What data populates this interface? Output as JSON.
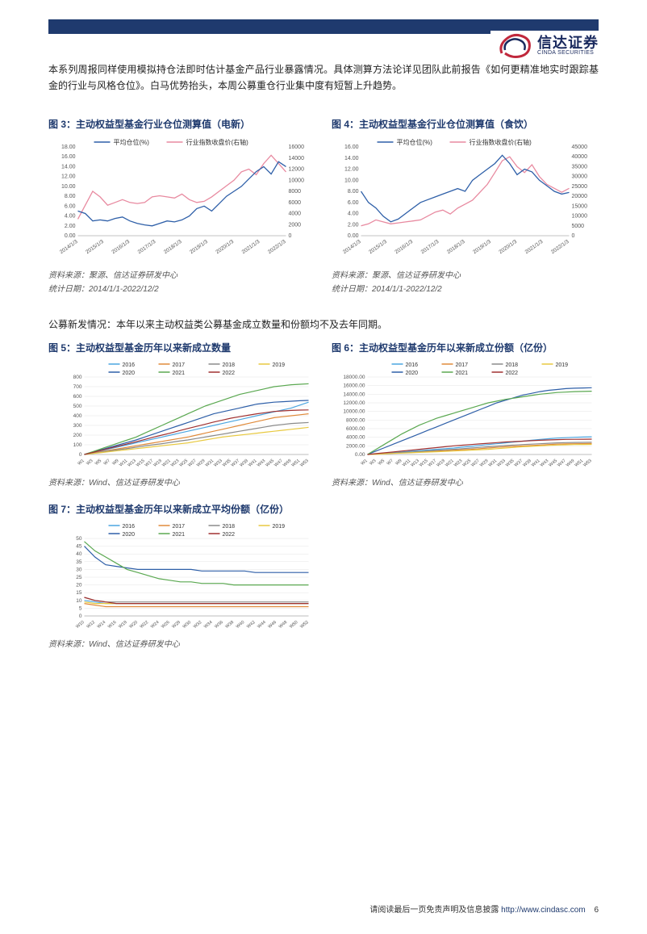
{
  "header": {
    "logo_cn": "信达证券",
    "logo_en": "CINDA SECURITIES"
  },
  "intro": "本系列周报同样使用模拟持仓法即时估计基金产品行业暴露情况。具体测算方法论详见团队此前报告《如何更精准地实时跟踪基金的行业与风格仓位》。白马优势抬头，本周公募重仓行业集中度有短暂上升趋势。",
  "chart3": {
    "title": "图 3：主动权益型基金行业仓位测算值（电新）",
    "legend": {
      "l1": "平均仓位(%)",
      "l2": "行业指数收盘价(右轴)"
    },
    "type": "line",
    "colors": {
      "l1": "#2e5fa8",
      "l2": "#e88aa0"
    },
    "y_left": {
      "min": 0,
      "max": 18,
      "step": 2,
      "ticks": [
        "0.00",
        "2.00",
        "4.00",
        "6.00",
        "8.00",
        "10.00",
        "12.00",
        "14.00",
        "16.00",
        "18.00"
      ]
    },
    "y_right": {
      "min": 0,
      "max": 16000,
      "step": 2000,
      "ticks": [
        "0",
        "2000",
        "4000",
        "6000",
        "8000",
        "10000",
        "12000",
        "14000",
        "16000"
      ]
    },
    "x_ticks": [
      "2014/1/3",
      "2015/1/3",
      "2016/1/3",
      "2017/1/3",
      "2018/1/3",
      "2019/1/3",
      "2020/1/3",
      "2021/1/3",
      "2022/1/3"
    ],
    "series_l1": [
      5.0,
      4.5,
      3.0,
      3.2,
      3.0,
      3.5,
      3.8,
      3.0,
      2.5,
      2.2,
      2.0,
      2.5,
      3.0,
      2.8,
      3.2,
      4.0,
      5.5,
      6.0,
      5.0,
      6.5,
      8.0,
      9.0,
      10.0,
      11.5,
      13.0,
      14.0,
      12.5,
      15.0,
      14.0
    ],
    "series_l2": [
      3000,
      5500,
      8000,
      7000,
      5500,
      6000,
      6500,
      6000,
      5800,
      6000,
      7000,
      7200,
      7000,
      6800,
      7500,
      6500,
      6000,
      6200,
      7000,
      8000,
      9000,
      10000,
      11500,
      12000,
      11000,
      13000,
      14500,
      13000,
      11500
    ],
    "source": "资料来源：聚源、信达证券研发中心",
    "date": "统计日期：2014/1/1-2022/12/2"
  },
  "chart4": {
    "title": "图 4：主动权益型基金行业仓位测算值（食饮）",
    "legend": {
      "l1": "平均仓位(%)",
      "l2": "行业指数收盘价(右轴)"
    },
    "type": "line",
    "colors": {
      "l1": "#2e5fa8",
      "l2": "#e88aa0"
    },
    "y_left": {
      "min": 0,
      "max": 16,
      "step": 2,
      "ticks": [
        "0.00",
        "2.00",
        "4.00",
        "6.00",
        "8.00",
        "10.00",
        "12.00",
        "14.00",
        "16.00"
      ]
    },
    "y_right": {
      "min": 0,
      "max": 45000,
      "step": 5000,
      "ticks": [
        "0",
        "5000",
        "10000",
        "15000",
        "20000",
        "25000",
        "30000",
        "35000",
        "40000",
        "45000"
      ]
    },
    "x_ticks": [
      "2014/1/3",
      "2015/1/3",
      "2016/1/3",
      "2017/1/3",
      "2018/1/3",
      "2019/1/3",
      "2020/1/3",
      "2021/1/3",
      "2022/1/3"
    ],
    "series_l1": [
      8.0,
      6.0,
      5.0,
      3.5,
      2.5,
      3.0,
      4.0,
      5.0,
      6.0,
      6.5,
      7.0,
      7.5,
      8.0,
      8.5,
      8.0,
      10.0,
      11.0,
      12.0,
      13.0,
      14.5,
      13.0,
      11.0,
      12.0,
      11.5,
      10.0,
      9.0,
      8.0,
      7.5,
      7.8
    ],
    "series_l2": [
      5000,
      6000,
      8000,
      7000,
      6000,
      6500,
      7000,
      7500,
      8000,
      10000,
      12000,
      13000,
      11000,
      14000,
      16000,
      18000,
      22000,
      26000,
      32000,
      38000,
      40000,
      35000,
      32000,
      36000,
      30000,
      26000,
      24000,
      22000,
      24000
    ],
    "source": "资料来源：聚源、信达证券研发中心",
    "date": "统计日期：2014/1/1-2022/12/2"
  },
  "section2": "公募新发情况：本年以来主动权益类公募基金成立数量和份额均不及去年同期。",
  "year_colors": {
    "2016": "#4aa5e0",
    "2017": "#e08a3a",
    "2018": "#8a8a8a",
    "2019": "#e8c940",
    "2020": "#2e5fa8",
    "2021": "#5aa850",
    "2022": "#a03030"
  },
  "chart5": {
    "title": "图 5：主动权益型基金历年以来新成立数量",
    "type": "line",
    "y": {
      "min": 0,
      "max": 800,
      "step": 100,
      "ticks": [
        "0",
        "100",
        "200",
        "300",
        "400",
        "500",
        "600",
        "700",
        "800"
      ]
    },
    "x_ticks": [
      "W1",
      "W3",
      "W5",
      "W7",
      "W9",
      "W11",
      "W13",
      "W15",
      "W17",
      "W19",
      "W21",
      "W23",
      "W25",
      "W27",
      "W29",
      "W31",
      "W33",
      "W35",
      "W37",
      "W39",
      "W41",
      "W43",
      "W45",
      "W47",
      "W49",
      "W51",
      "W53"
    ],
    "series": {
      "2016": [
        0,
        20,
        40,
        60,
        80,
        100,
        120,
        140,
        160,
        180,
        200,
        220,
        240,
        260,
        280,
        300,
        320,
        340,
        360,
        380,
        400,
        420,
        440,
        460,
        480,
        510,
        540
      ],
      "2017": [
        0,
        15,
        30,
        45,
        60,
        75,
        90,
        105,
        120,
        135,
        150,
        165,
        180,
        200,
        220,
        240,
        260,
        280,
        300,
        320,
        340,
        360,
        380,
        390,
        400,
        410,
        420
      ],
      "2018": [
        0,
        12,
        25,
        38,
        50,
        62,
        75,
        88,
        100,
        112,
        125,
        138,
        150,
        165,
        180,
        195,
        210,
        225,
        240,
        255,
        270,
        285,
        300,
        310,
        320,
        325,
        330
      ],
      "2019": [
        0,
        10,
        20,
        30,
        40,
        50,
        60,
        70,
        80,
        90,
        100,
        110,
        120,
        135,
        150,
        165,
        180,
        190,
        200,
        210,
        220,
        230,
        240,
        250,
        260,
        270,
        280
      ],
      "2020": [
        0,
        25,
        50,
        75,
        100,
        125,
        150,
        180,
        210,
        240,
        270,
        300,
        330,
        360,
        390,
        420,
        440,
        460,
        480,
        500,
        520,
        530,
        540,
        545,
        550,
        555,
        558
      ],
      "2021": [
        0,
        30,
        60,
        90,
        120,
        150,
        180,
        220,
        260,
        300,
        340,
        380,
        420,
        460,
        500,
        530,
        560,
        590,
        620,
        640,
        660,
        680,
        700,
        710,
        720,
        725,
        730
      ],
      "2022": [
        0,
        22,
        44,
        66,
        88,
        110,
        132,
        155,
        178,
        200,
        222,
        245,
        268,
        290,
        312,
        335,
        355,
        375,
        390,
        405,
        420,
        432,
        444,
        450,
        455,
        458,
        460
      ]
    },
    "source": "资料来源：Wind、信达证券研发中心"
  },
  "chart6": {
    "title": "图 6：主动权益型基金历年以来新成立份额（亿份）",
    "type": "line",
    "y": {
      "min": 0,
      "max": 18000,
      "step": 2000,
      "ticks": [
        "0.00",
        "2000.00",
        "4000.00",
        "6000.00",
        "8000.00",
        "10000.00",
        "12000.00",
        "14000.00",
        "16000.00",
        "18000.00"
      ]
    },
    "x_ticks": [
      "W1",
      "W3",
      "W5",
      "W7",
      "W9",
      "W11",
      "W13",
      "W15",
      "W17",
      "W19",
      "W21",
      "W23",
      "W25",
      "W27",
      "W29",
      "W31",
      "W33",
      "W35",
      "W37",
      "W39",
      "W41",
      "W43",
      "W45",
      "W47",
      "W49",
      "W51",
      "W53"
    ],
    "series": {
      "2016": [
        0,
        150,
        300,
        450,
        600,
        750,
        900,
        1050,
        1200,
        1350,
        1500,
        1700,
        1900,
        2100,
        2300,
        2500,
        2700,
        2900,
        3100,
        3300,
        3500,
        3650,
        3800,
        3900,
        4000,
        4050,
        4100
      ],
      "2017": [
        0,
        100,
        200,
        300,
        400,
        500,
        600,
        700,
        800,
        900,
        1000,
        1100,
        1200,
        1350,
        1500,
        1650,
        1800,
        1900,
        2000,
        2100,
        2200,
        2300,
        2400,
        2450,
        2500,
        2520,
        2550
      ],
      "2018": [
        0,
        120,
        240,
        360,
        480,
        600,
        720,
        840,
        960,
        1080,
        1200,
        1350,
        1500,
        1650,
        1800,
        1950,
        2100,
        2200,
        2300,
        2400,
        2500,
        2600,
        2700,
        2750,
        2800,
        2820,
        2850
      ],
      "2019": [
        0,
        80,
        160,
        240,
        320,
        400,
        480,
        560,
        640,
        720,
        800,
        900,
        1000,
        1100,
        1200,
        1350,
        1500,
        1650,
        1800,
        1900,
        2000,
        2100,
        2200,
        2250,
        2300,
        2320,
        2350
      ],
      "2020": [
        0,
        800,
        1600,
        2400,
        3200,
        4000,
        4800,
        5600,
        6400,
        7200,
        8000,
        8800,
        9600,
        10400,
        11200,
        12000,
        12600,
        13200,
        13800,
        14200,
        14600,
        14900,
        15100,
        15300,
        15400,
        15450,
        15500
      ],
      "2021": [
        0,
        1200,
        2400,
        3600,
        4800,
        5800,
        6800,
        7600,
        8400,
        9000,
        9600,
        10200,
        10800,
        11400,
        12000,
        12400,
        12800,
        13100,
        13400,
        13700,
        14000,
        14200,
        14400,
        14500,
        14600,
        14650,
        14700
      ],
      "2022": [
        0,
        200,
        400,
        600,
        800,
        1000,
        1200,
        1400,
        1600,
        1800,
        2000,
        2150,
        2300,
        2450,
        2600,
        2750,
        2900,
        3000,
        3100,
        3200,
        3300,
        3380,
        3450,
        3500,
        3530,
        3550,
        3560
      ]
    },
    "source": "资料来源：Wind、信达证券研发中心"
  },
  "chart7": {
    "title": "图 7：主动权益型基金历年以来新成立平均份额（亿份）",
    "type": "line",
    "y": {
      "min": 0,
      "max": 50,
      "step": 5,
      "ticks": [
        "0",
        "5",
        "10",
        "15",
        "20",
        "25",
        "30",
        "35",
        "40",
        "45",
        "50"
      ]
    },
    "x_ticks": [
      "W10",
      "W12",
      "W14",
      "W16",
      "W18",
      "W20",
      "W22",
      "W24",
      "W26",
      "W28",
      "W30",
      "W32",
      "W34",
      "W36",
      "W38",
      "W40",
      "W42",
      "W44",
      "W46",
      "W48",
      "W50",
      "W52"
    ],
    "series": {
      "2016": [
        10,
        9,
        8,
        8,
        8,
        8,
        8,
        8,
        8,
        8,
        8,
        8,
        8,
        8,
        8,
        8,
        8,
        8,
        8,
        8,
        8,
        8
      ],
      "2017": [
        8,
        7,
        6,
        6,
        6,
        6,
        6,
        6,
        6,
        6,
        6,
        6,
        6,
        6,
        6,
        6,
        6,
        6,
        6,
        6,
        6,
        6
      ],
      "2018": [
        12,
        10,
        9,
        9,
        9,
        9,
        9,
        9,
        9,
        9,
        9,
        9,
        9,
        9,
        9,
        9,
        9,
        9,
        9,
        9,
        9,
        9
      ],
      "2019": [
        9,
        8,
        8,
        8,
        8,
        8,
        8,
        8,
        8,
        8,
        8,
        8,
        8,
        8,
        8,
        8,
        8,
        8,
        8,
        8,
        8,
        8
      ],
      "2020": [
        45,
        38,
        33,
        32,
        31,
        30,
        30,
        30,
        30,
        30,
        30,
        29,
        29,
        29,
        29,
        29,
        28,
        28,
        28,
        28,
        28,
        28
      ],
      "2021": [
        48,
        42,
        38,
        34,
        30,
        28,
        26,
        24,
        23,
        22,
        22,
        21,
        21,
        21,
        20,
        20,
        20,
        20,
        20,
        20,
        20,
        20
      ],
      "2022": [
        12,
        10,
        9,
        8,
        8,
        8,
        8,
        8,
        8,
        8,
        8,
        8,
        8,
        8,
        8,
        8,
        8,
        8,
        8,
        8,
        8,
        8
      ]
    },
    "source": "资料来源：Wind、信达证券研发中心"
  },
  "footer": {
    "text": "请阅读最后一页免责声明及信息披露",
    "url": "http://www.cindasc.com",
    "page": "6"
  }
}
